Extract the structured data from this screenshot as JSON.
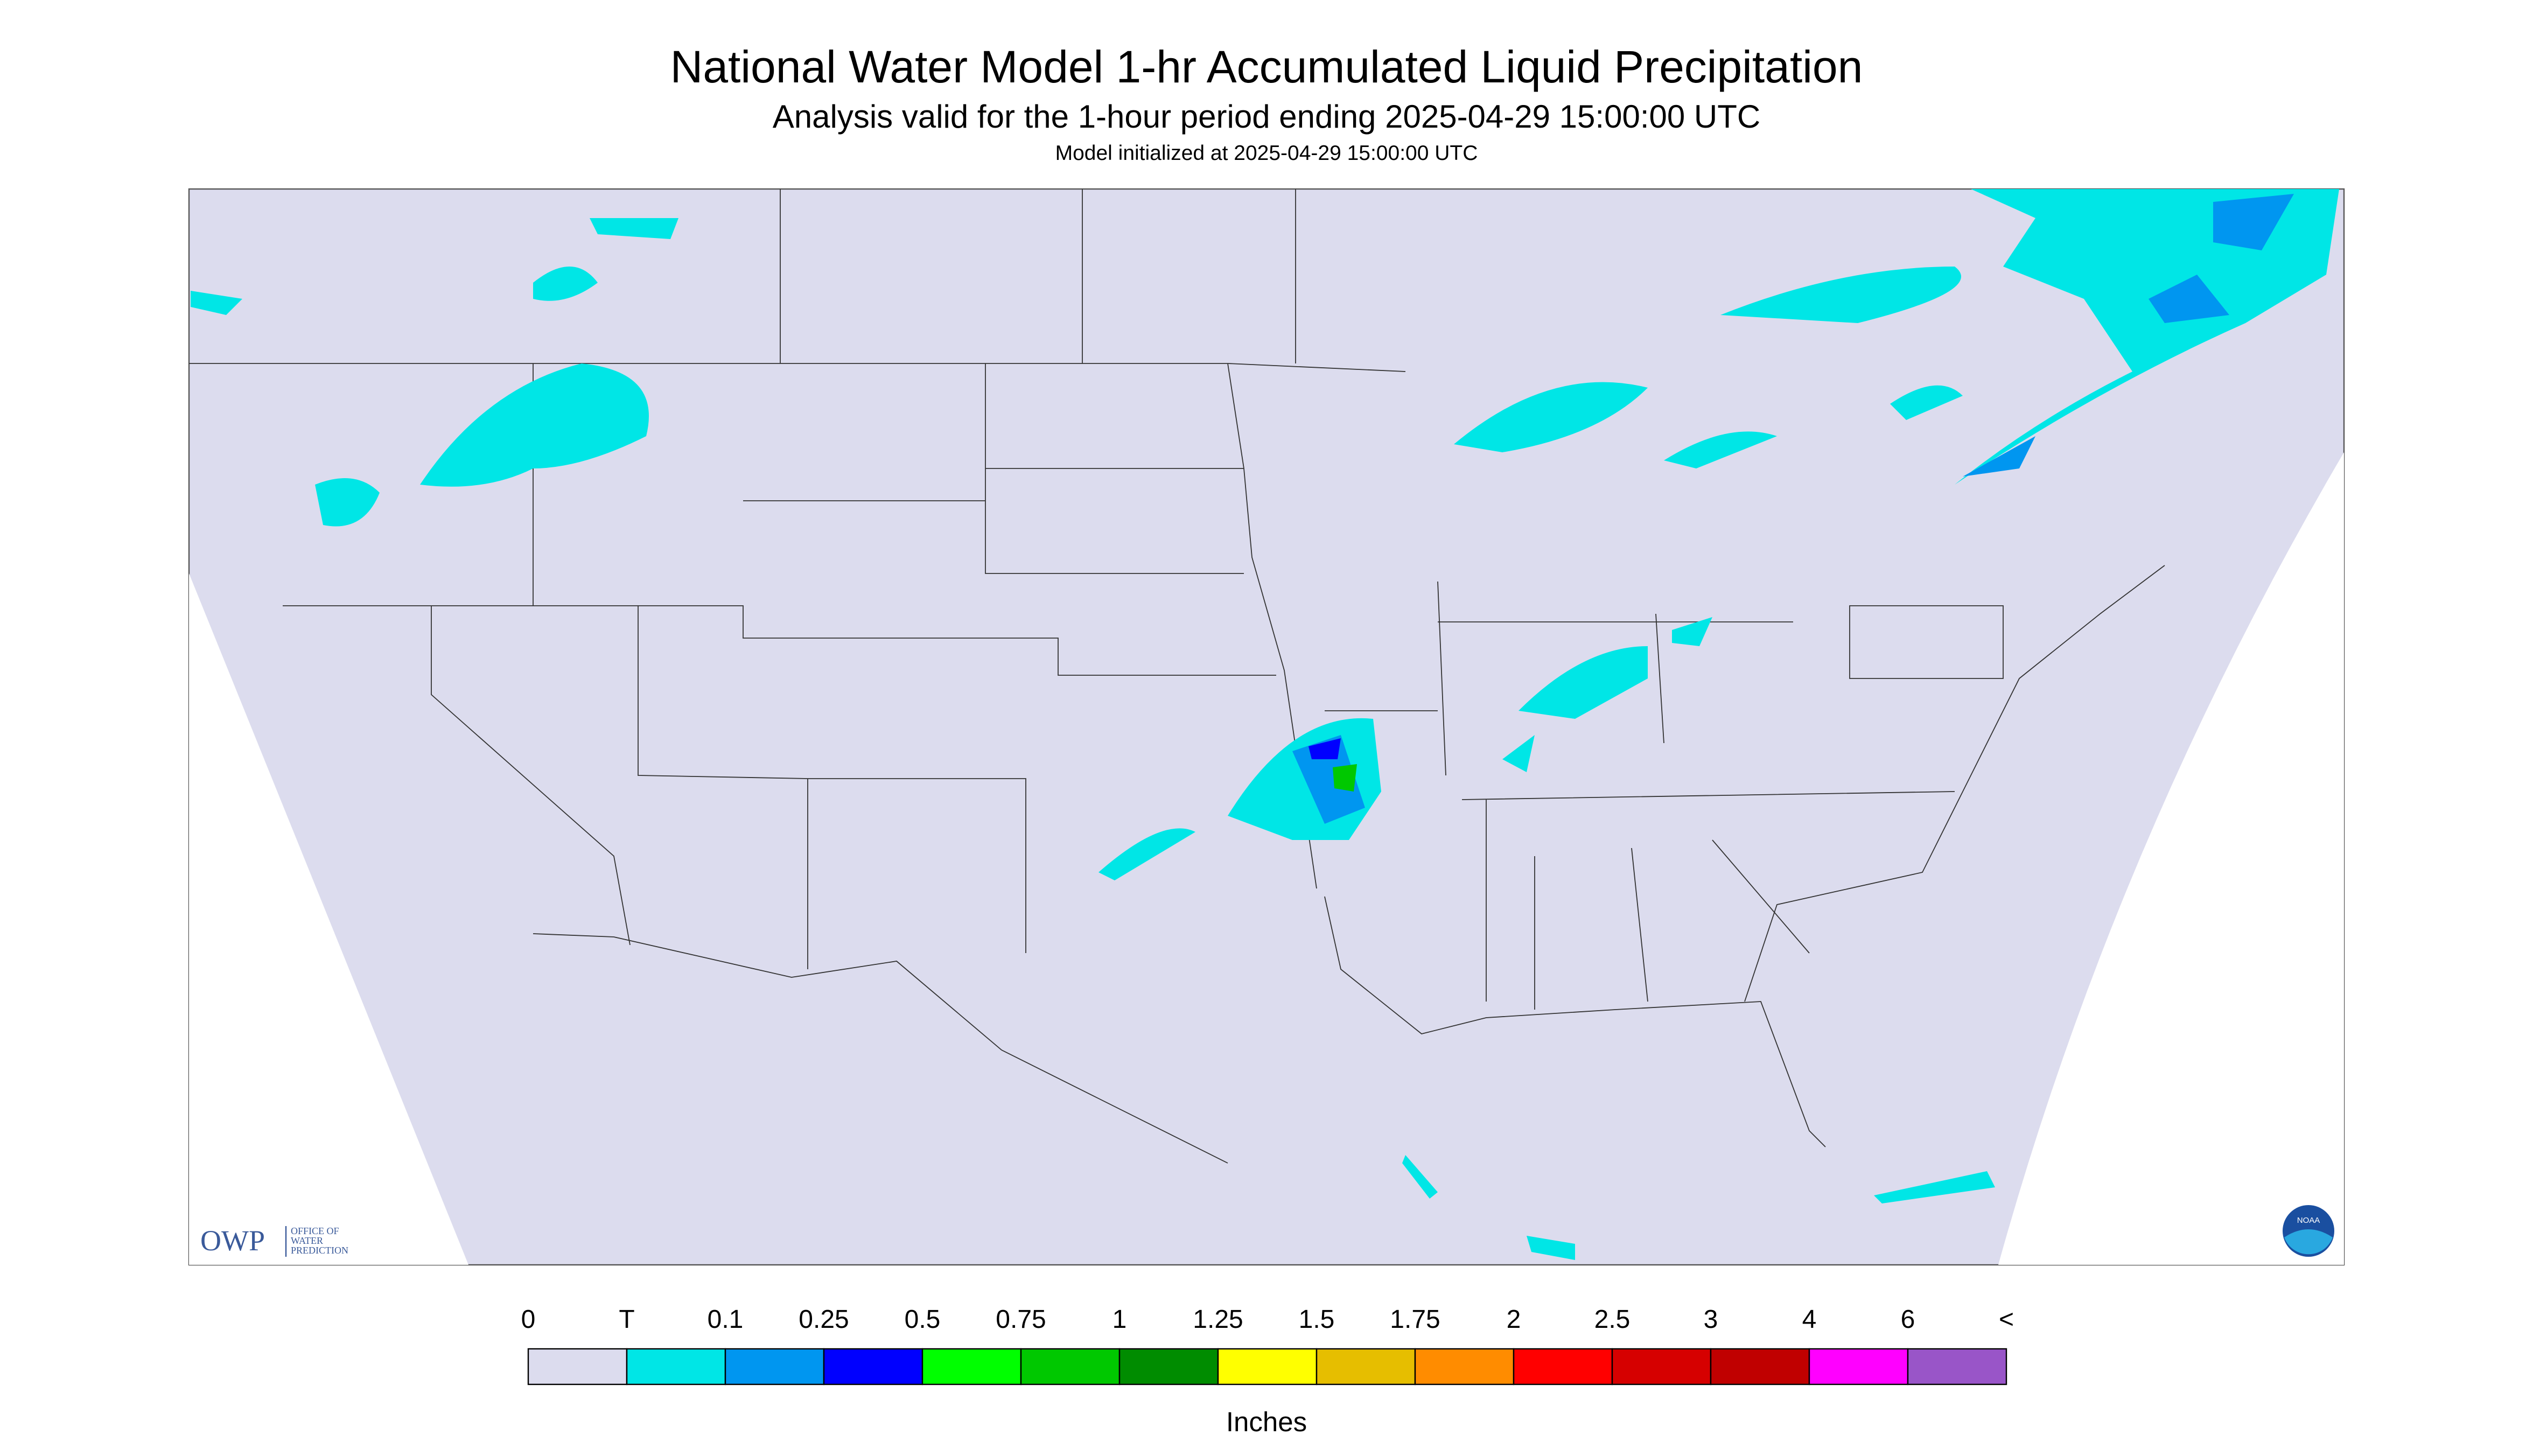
{
  "header": {
    "title": "National Water Model 1-hr Accumulated Liquid Precipitation",
    "subtitle": "Analysis valid for the 1-hour period ending 2025-04-29 15:00:00 UTC",
    "note": "Model initialized at 2025-04-29 15:00:00 UTC"
  },
  "logos": {
    "owp": "OWP",
    "owp_text": [
      "OFFICE OF",
      "WATER",
      "PREDICTION"
    ],
    "noaa": "NOAA"
  },
  "legend": {
    "labels": [
      "0",
      "T",
      "0.1",
      "0.25",
      "0.5",
      "0.75",
      "1",
      "1.25",
      "1.5",
      "1.75",
      "2",
      "2.5",
      "3",
      "4",
      "6",
      "<"
    ],
    "colors": [
      "#dcdcee",
      "#00e6e6",
      "#0096f0",
      "#0000ff",
      "#00ff00",
      "#00c800",
      "#008c00",
      "#ffff00",
      "#e6be00",
      "#ff8c00",
      "#ff0000",
      "#d60000",
      "#c00000",
      "#ff00ff",
      "#9955c8"
    ],
    "unit": "Inches"
  }
}
